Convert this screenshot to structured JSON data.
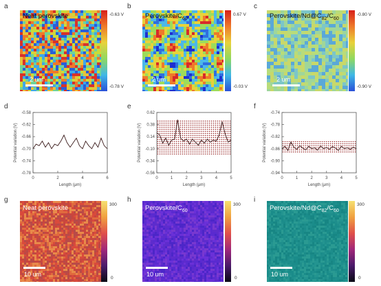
{
  "panels": {
    "a": {
      "label": "a",
      "title": "Neat perovskite",
      "scalebar": "2 um",
      "cb_top": "-0.63 V",
      "cb_bottom": "-0.78 V"
    },
    "b": {
      "label": "b",
      "title_main": "Perovskite/C",
      "title_sub": "60",
      "scalebar": "2 um",
      "cb_top": "0.67 V",
      "cb_bottom": "-0.03 V"
    },
    "c": {
      "label": "c",
      "title_main": "Perovskite/Nd@C",
      "title_sub1": "82",
      "title_mid": "/C",
      "title_sub2": "60",
      "scalebar": "2 um",
      "cb_top": "-0.80 V",
      "cb_bottom": "-0.90 V"
    },
    "d": {
      "label": "d"
    },
    "e": {
      "label": "e"
    },
    "f": {
      "label": "f"
    },
    "g": {
      "label": "g",
      "title": "Neat perovskite",
      "scalebar": "10 um",
      "cb_top": "300",
      "cb_bottom": "0"
    },
    "h": {
      "label": "h",
      "title_main": "Perovskite/C",
      "title_sub": "60",
      "scalebar": "10 um",
      "cb_top": "300",
      "cb_bottom": "0"
    },
    "i": {
      "label": "i",
      "title_main": "Perovskite/Nd@C",
      "title_sub1": "82",
      "title_mid": "/C",
      "title_sub2": "60",
      "scalebar": "10 um",
      "cb_top": "300",
      "cb_bottom": "0"
    }
  },
  "chart_data": [
    {
      "type": "line",
      "panel": "d",
      "xlabel": "Length (μm)",
      "ylabel": "Potential variation (V)",
      "xlim": [
        0,
        6
      ],
      "ylim": [
        -0.78,
        -0.58
      ],
      "xticks": [
        "0",
        "2",
        "4",
        "6"
      ],
      "yticks": [
        "-0.58",
        "-0.62",
        "-0.66",
        "-0.70",
        "-0.74",
        "-0.78"
      ],
      "x": [
        0,
        0.25,
        0.5,
        0.75,
        1.0,
        1.25,
        1.5,
        1.75,
        2.0,
        2.25,
        2.5,
        2.75,
        3.0,
        3.25,
        3.5,
        3.75,
        4.0,
        4.25,
        4.5,
        4.75,
        5.0,
        5.25,
        5.5,
        5.75,
        6.0
      ],
      "y": [
        -0.7,
        -0.685,
        -0.69,
        -0.675,
        -0.695,
        -0.68,
        -0.7,
        -0.685,
        -0.69,
        -0.675,
        -0.655,
        -0.68,
        -0.695,
        -0.68,
        -0.665,
        -0.69,
        -0.7,
        -0.675,
        -0.69,
        -0.7,
        -0.68,
        -0.695,
        -0.665,
        -0.69,
        -0.7
      ]
    },
    {
      "type": "line",
      "panel": "e",
      "xlabel": "Length (μm)",
      "ylabel": "Potential variation (V)",
      "xlim": [
        0,
        5
      ],
      "ylim": [
        -0.56,
        0.62
      ],
      "xticks": [
        "0",
        "1",
        "2",
        "3",
        "4",
        "5"
      ],
      "yticks": [
        "0.62",
        "0.38",
        "0.14",
        "-0.10",
        "-0.34",
        "-0.56"
      ],
      "band": [
        -0.22,
        0.48
      ],
      "x": [
        0,
        0.2,
        0.4,
        0.6,
        0.8,
        1.0,
        1.2,
        1.4,
        1.6,
        1.8,
        2.0,
        2.2,
        2.4,
        2.6,
        2.8,
        3.0,
        3.2,
        3.4,
        3.6,
        3.8,
        4.0,
        4.2,
        4.4,
        4.6,
        4.8,
        5.0
      ],
      "y": [
        0.22,
        0.18,
        0.02,
        0.12,
        -0.02,
        0.08,
        0.1,
        0.48,
        0.12,
        0.06,
        0.1,
        0.0,
        0.1,
        0.04,
        -0.02,
        0.08,
        0.02,
        0.1,
        0.04,
        0.08,
        0.06,
        0.18,
        0.44,
        0.2,
        0.04,
        0.08
      ]
    },
    {
      "type": "line",
      "panel": "f",
      "xlabel": "Length (μm)",
      "ylabel": "Potential variation (V)",
      "xlim": [
        0,
        5
      ],
      "ylim": [
        -0.94,
        -0.74
      ],
      "xticks": [
        "0",
        "1",
        "2",
        "3",
        "4",
        "5"
      ],
      "yticks": [
        "-0.74",
        "-0.78",
        "-0.82",
        "-0.86",
        "-0.90",
        "-0.94"
      ],
      "band": [
        -0.875,
        -0.835
      ],
      "x": [
        0,
        0.2,
        0.4,
        0.6,
        0.8,
        1.0,
        1.2,
        1.4,
        1.6,
        1.8,
        2.0,
        2.2,
        2.4,
        2.6,
        2.8,
        3.0,
        3.2,
        3.4,
        3.6,
        3.8,
        4.0,
        4.2,
        4.4,
        4.6,
        4.8,
        5.0
      ],
      "y": [
        -0.86,
        -0.852,
        -0.866,
        -0.838,
        -0.855,
        -0.862,
        -0.85,
        -0.858,
        -0.864,
        -0.852,
        -0.86,
        -0.857,
        -0.865,
        -0.851,
        -0.86,
        -0.856,
        -0.862,
        -0.853,
        -0.858,
        -0.866,
        -0.852,
        -0.86,
        -0.857,
        -0.862,
        -0.855,
        -0.86
      ]
    }
  ],
  "colors": {
    "panel_a": [
      "#2a5dd8",
      "#3fa8e6",
      "#6fd39a",
      "#c8dc3a",
      "#e8c23a",
      "#ee7a2a",
      "#d8322a"
    ],
    "panel_b": [
      "#1e2fd0",
      "#2f6ee0",
      "#4cb8e8",
      "#9ddc5a",
      "#e8d23a",
      "#ee7a2a",
      "#d82a2a"
    ],
    "panel_c": [
      "#5aa8d8",
      "#7cc6c8",
      "#9fd69a",
      "#b8dc7a",
      "#c8d86a"
    ],
    "panel_g": [
      "#d94a3c",
      "#e06a3e",
      "#c8463e",
      "#e88a4a",
      "#b84a48"
    ],
    "panel_h": [
      "#5a2ad0",
      "#6a30d8",
      "#4c26c8",
      "#7838d0",
      "#5e2ccc"
    ],
    "panel_i": [
      "#1a8c8a",
      "#239490",
      "#178684",
      "#2a9a92",
      "#1e8e8c"
    ],
    "line_color": "#3a1a1a",
    "band_color": "#9a2a2a"
  }
}
